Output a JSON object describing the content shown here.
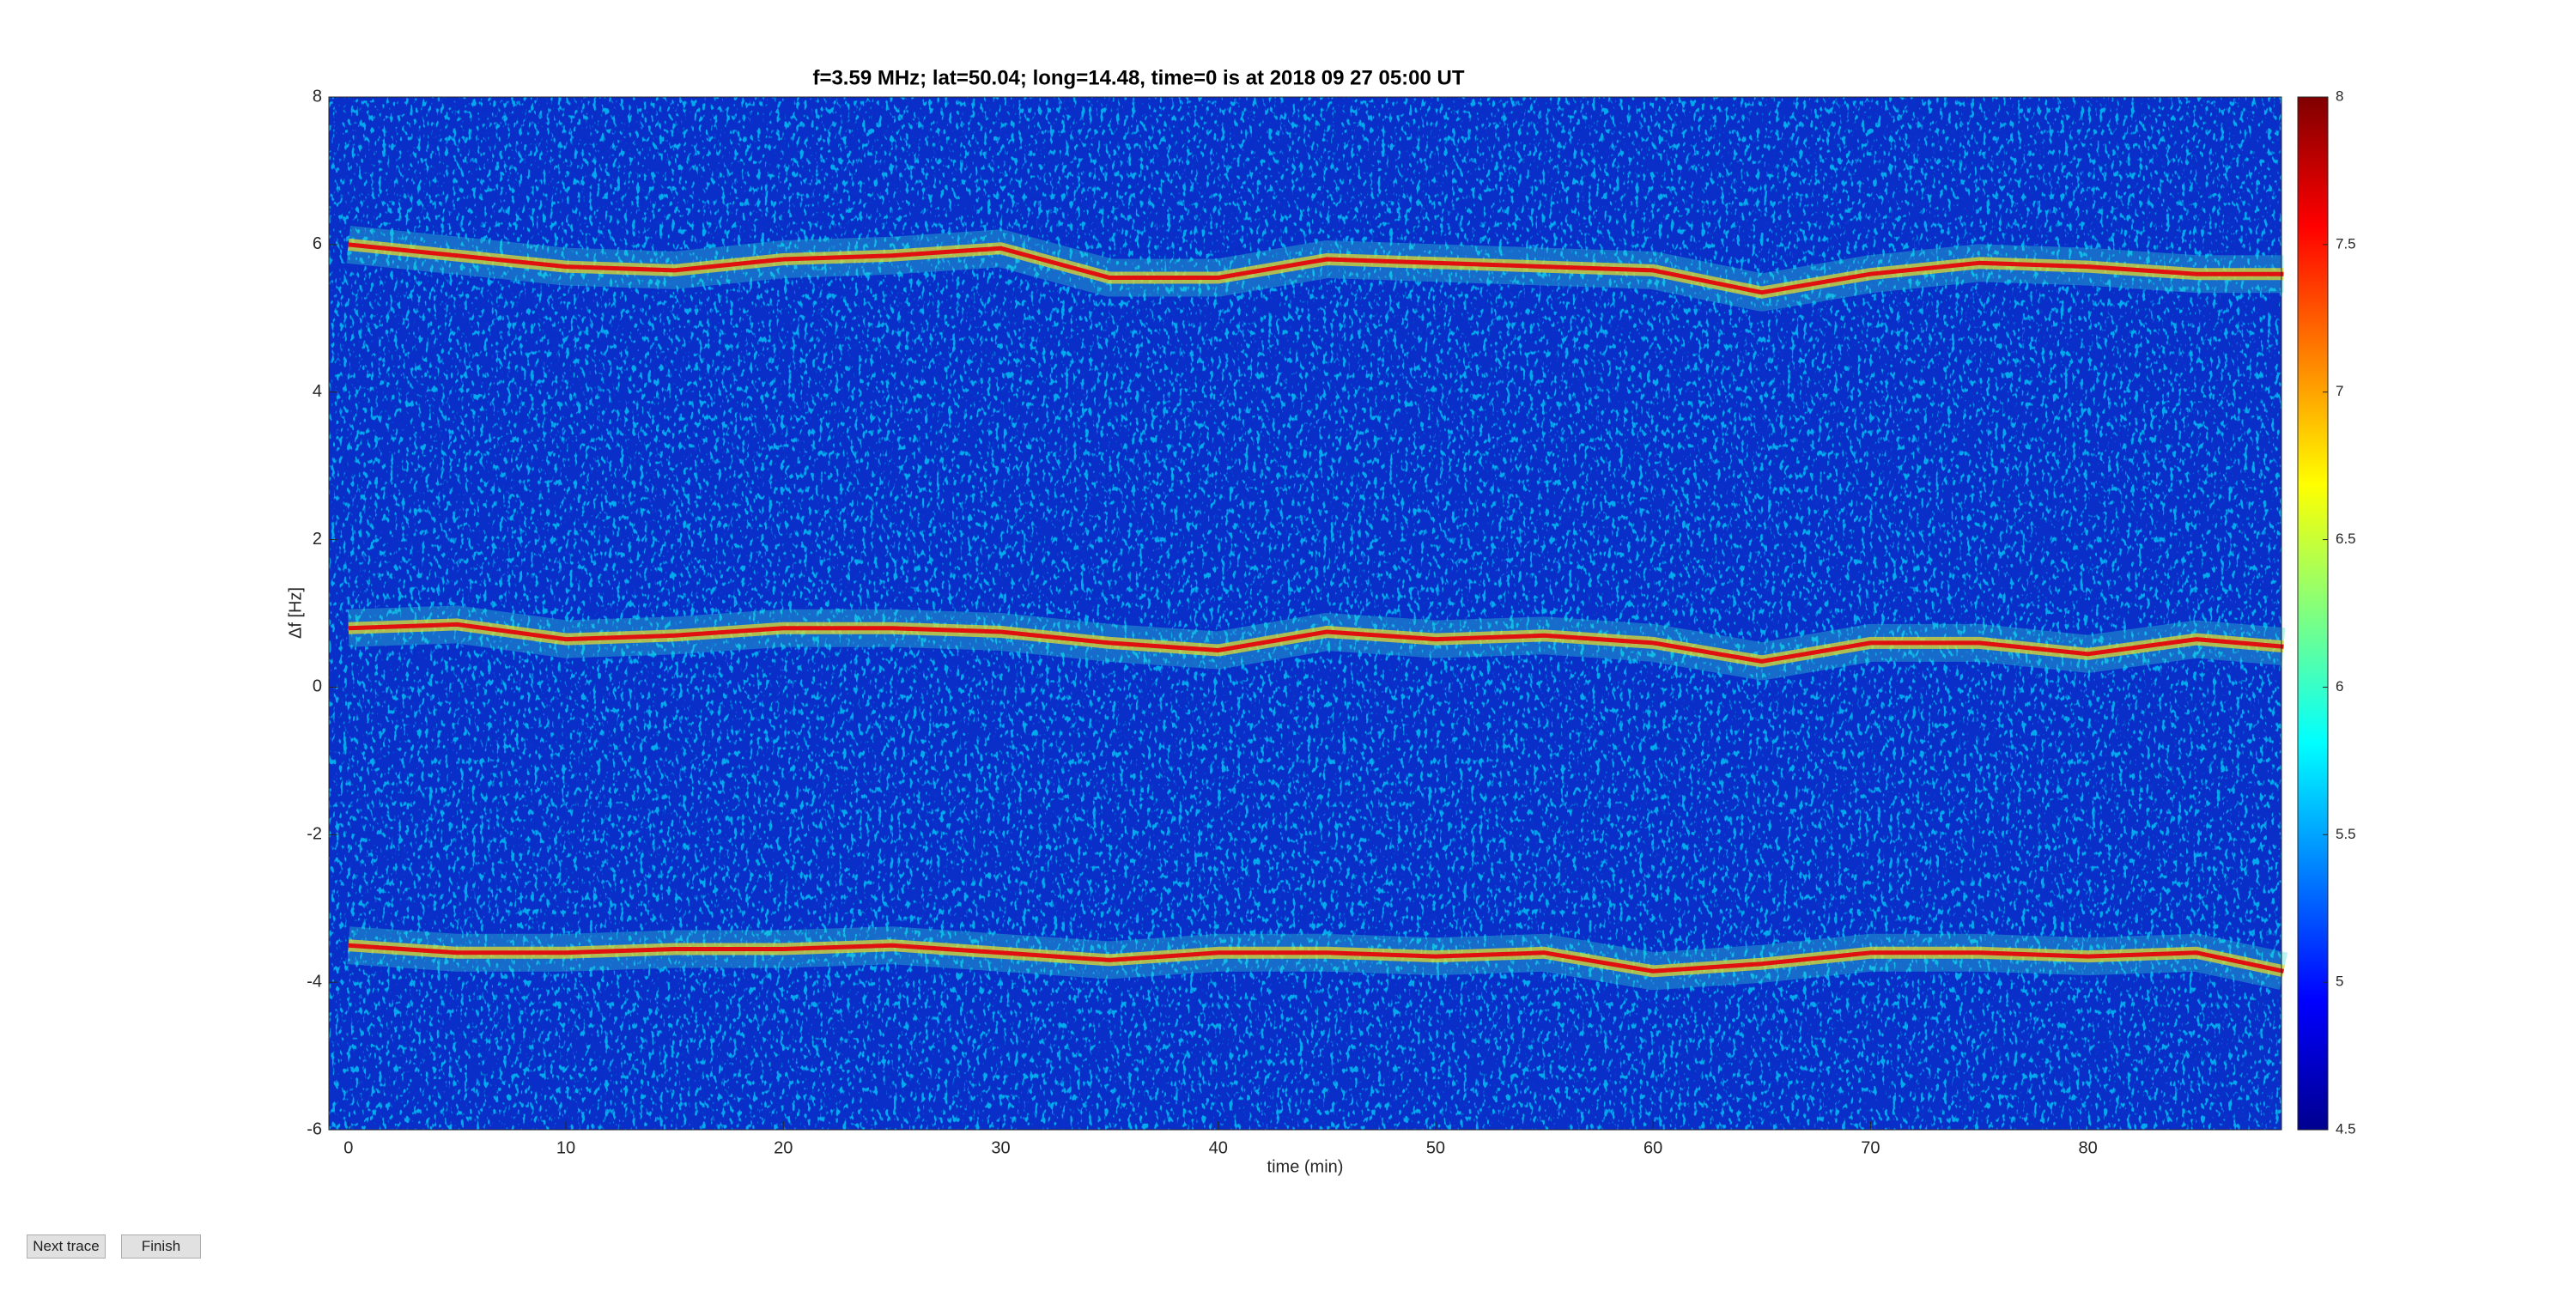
{
  "chart_data": {
    "type": "spectrogram",
    "title": "f=3.59 MHz;  lat=50.04; long=14.48, time=0 is at 2018 09 27 05:00 UT",
    "x_label": "time (min)",
    "y_label": "Δf [Hz]",
    "xlim": [
      -0.9,
      88.9
    ],
    "xticks": [
      0,
      10,
      20,
      30,
      40,
      50,
      60,
      70,
      80
    ],
    "ylim": [
      -6,
      8
    ],
    "yticks": [
      -6,
      -4,
      -2,
      0,
      2,
      4,
      6,
      8
    ],
    "colorbar": {
      "lim": [
        4.5,
        8
      ],
      "ticks": [
        4.5,
        5,
        5.5,
        6,
        6.5,
        7,
        7.5,
        8
      ]
    },
    "x": [
      0,
      5,
      10,
      15,
      20,
      25,
      30,
      35,
      40,
      45,
      50,
      55,
      60,
      65,
      70,
      75,
      80,
      85,
      89
    ],
    "series": [
      {
        "color": "#e01010",
        "values": [
          6.0,
          5.85,
          5.7,
          5.65,
          5.8,
          5.85,
          5.95,
          5.55,
          5.55,
          5.8,
          5.75,
          5.7,
          5.65,
          5.35,
          5.6,
          5.75,
          5.7,
          5.6,
          5.6
        ]
      },
      {
        "color": "#e01010",
        "values": [
          0.8,
          0.85,
          0.65,
          0.7,
          0.8,
          0.8,
          0.75,
          0.6,
          0.5,
          0.75,
          0.65,
          0.7,
          0.6,
          0.35,
          0.6,
          0.6,
          0.45,
          0.65,
          0.55
        ]
      },
      {
        "color": "#e01010",
        "values": [
          -3.5,
          -3.6,
          -3.6,
          -3.55,
          -3.55,
          -3.5,
          -3.6,
          -3.7,
          -3.6,
          -3.6,
          -3.65,
          -3.6,
          -3.85,
          -3.75,
          -3.6,
          -3.6,
          -3.65,
          -3.6,
          -3.85
        ]
      }
    ]
  },
  "buttons": [
    "Next trace",
    "Finish"
  ]
}
